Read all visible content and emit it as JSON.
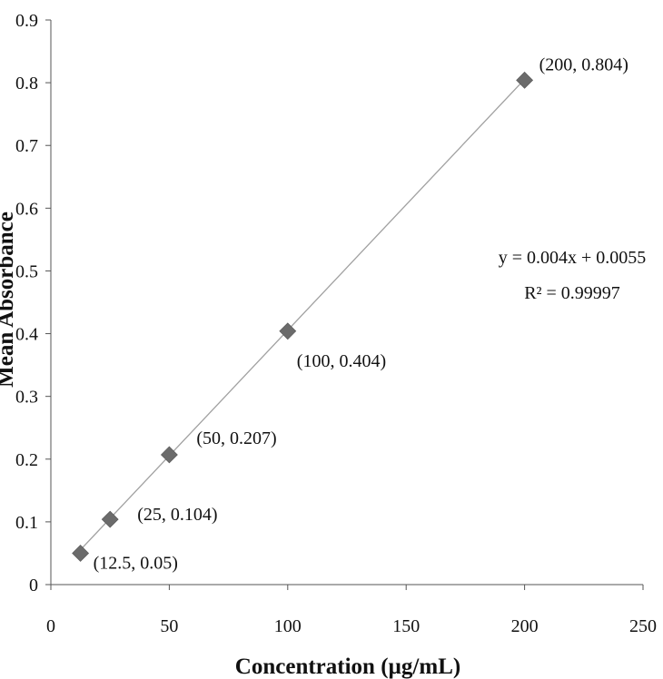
{
  "chart_data": {
    "type": "scatter",
    "title": "",
    "xlabel": "Concentration (µg/mL)",
    "ylabel": "Mean Absorbance",
    "xlim": [
      0,
      250
    ],
    "ylim": [
      0,
      0.9
    ],
    "xticks": [
      0,
      50,
      100,
      150,
      200,
      250
    ],
    "xtick_labels": [
      "0",
      "50",
      "100",
      "150",
      "200",
      "250"
    ],
    "yticks": [
      0,
      0.1,
      0.2,
      0.3,
      0.4,
      0.5,
      0.6,
      0.7,
      0.8,
      0.9
    ],
    "ytick_labels": [
      "0",
      "0.1",
      "0.2",
      "0.3",
      "0.4",
      "0.5",
      "0.6",
      "0.7",
      "0.8",
      "0.9"
    ],
    "grid": false,
    "legend": "none",
    "series": [
      {
        "x": [
          12.5,
          25,
          50,
          100,
          200
        ],
        "y": [
          0.05,
          0.104,
          0.207,
          0.404,
          0.804
        ],
        "marker": "diamond",
        "color": "#6b6b6b"
      }
    ],
    "point_labels": [
      "(12.5, 0.05)",
      "(25, 0.104)",
      "(50, 0.207)",
      "(100, 0.404)",
      "(200, 0.804)"
    ],
    "trendline": {
      "type": "linear",
      "slope": 0.004,
      "intercept": 0.0055,
      "x_range": [
        12.5,
        200
      ],
      "color": "#a0a0a0",
      "equation": "y = 0.004x + 0.0055",
      "r_squared": "R² = 0.99997"
    }
  }
}
